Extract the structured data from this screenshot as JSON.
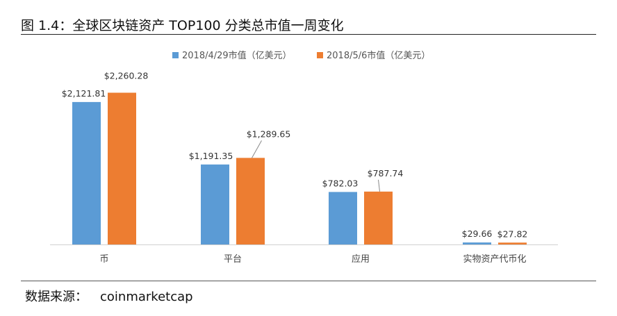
{
  "figure": {
    "title": "图 1.4：全球区块链资产 TOP100 分类总市值一周变化",
    "source_label": "数据来源：",
    "source_value": "coinmarketcap"
  },
  "chart_data": {
    "type": "bar",
    "categories": [
      "币",
      "平台",
      "应用",
      "实物资产代币化"
    ],
    "series": [
      {
        "name": "2018/4/29市值（亿美元）",
        "color": "#5b9bd5",
        "values": [
          2121.81,
          1191.35,
          782.03,
          29.66
        ],
        "labels": [
          "$2,121.81",
          "$1,191.35",
          "$782.03",
          "$29.66"
        ]
      },
      {
        "name": "2018/5/6市值（亿美元）",
        "color": "#ed7d31",
        "values": [
          2260.28,
          1289.65,
          787.74,
          27.82
        ],
        "labels": [
          "$2,260.28",
          "$1,289.65",
          "$787.74",
          "$27.82"
        ]
      }
    ],
    "ylim": [
      0,
      2400
    ],
    "grid": false,
    "legend_position": "top-center"
  }
}
